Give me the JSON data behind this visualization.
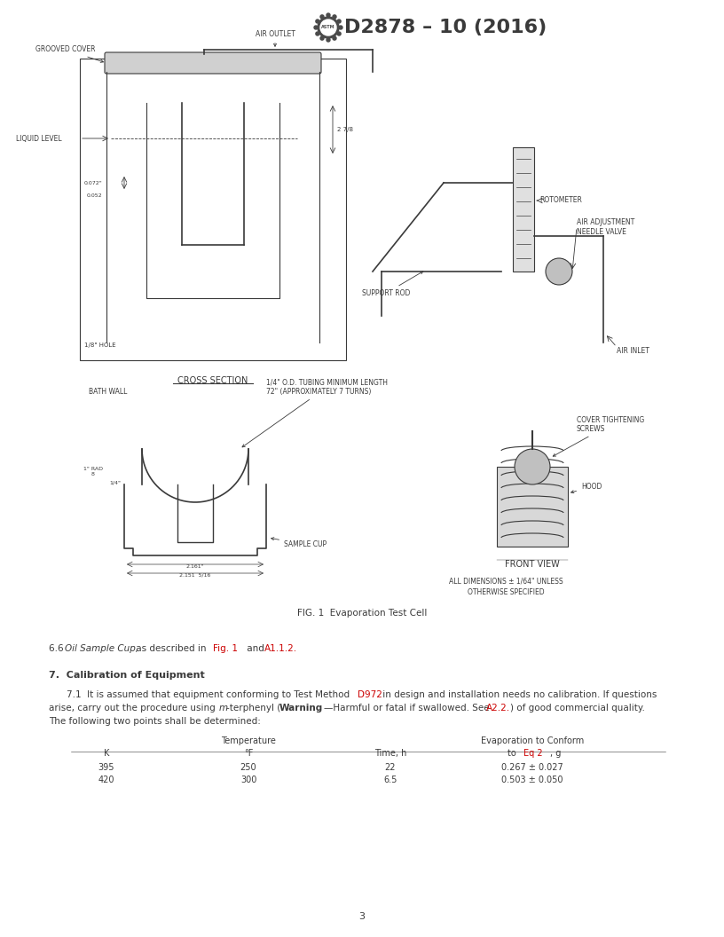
{
  "title": "D2878 – 10 (2016)",
  "title_fontsize": 18,
  "background_color": "#ffffff",
  "text_color": "#3a3a3a",
  "red_color": "#cc0000",
  "page_number": "3",
  "fig_caption": "FIG. 1  Evaporation Test Cell",
  "table_data": [
    [
      "395",
      "250",
      "22",
      "0.267 ± 0.027"
    ],
    [
      "420",
      "300",
      "6.5",
      "0.503 ± 0.050"
    ]
  ]
}
